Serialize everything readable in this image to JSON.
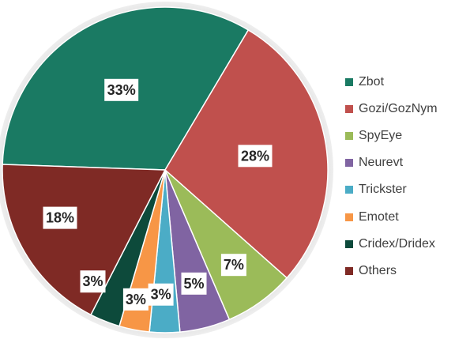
{
  "chart_data": {
    "type": "pie",
    "categories": [
      "Zbot",
      "Gozi/GozNym",
      "SpyEye",
      "Neurevt",
      "Trickster",
      "Emotet",
      "Cridex/Dridex",
      "Others"
    ],
    "values": [
      33,
      28,
      7,
      5,
      3,
      3,
      3,
      18
    ],
    "data_labels": [
      "33%",
      "28%",
      "7%",
      "5%",
      "3%",
      "3%",
      "3%",
      "18%"
    ],
    "colors": [
      "#1a7a63",
      "#c0504d",
      "#9bbb59",
      "#8064a2",
      "#4bacc6",
      "#f79646",
      "#0d4a3b",
      "#7f2a25"
    ],
    "legend_position": "right"
  }
}
